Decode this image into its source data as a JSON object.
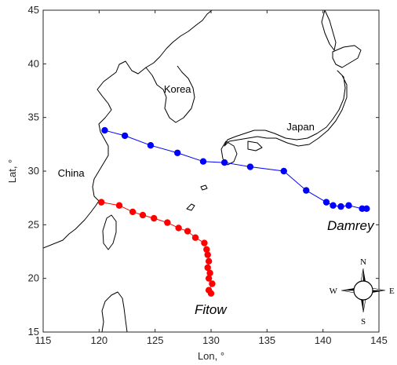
{
  "chart_data": {
    "type": "map-track",
    "xlabel": "Lon, °",
    "ylabel": "Lat, °",
    "xlim": [
      115,
      145
    ],
    "ylim": [
      15,
      45
    ],
    "xticks": [
      "115",
      "120",
      "125",
      "130",
      "135",
      "140",
      "145"
    ],
    "yticks": [
      "15",
      "20",
      "25",
      "30",
      "35",
      "40",
      "45"
    ],
    "grid": false,
    "places": [
      {
        "label": "Korea",
        "lon": 127.0,
        "lat": 37.3
      },
      {
        "label": "Japan",
        "lon": 138.0,
        "lat": 33.8
      },
      {
        "label": "China",
        "lon": 117.5,
        "lat": 29.5
      }
    ],
    "series": [
      {
        "name": "Damrey",
        "color": "#0000ff",
        "points": [
          [
            143.9,
            26.5
          ],
          [
            143.5,
            26.5
          ],
          [
            142.3,
            26.8
          ],
          [
            141.6,
            26.7
          ],
          [
            140.9,
            26.8
          ],
          [
            140.3,
            27.1
          ],
          [
            138.5,
            28.2
          ],
          [
            136.5,
            30.0
          ],
          [
            133.5,
            30.4
          ],
          [
            131.2,
            30.8
          ],
          [
            129.3,
            30.9
          ],
          [
            127.0,
            31.7
          ],
          [
            124.6,
            32.4
          ],
          [
            122.3,
            33.3
          ],
          [
            120.5,
            33.8
          ]
        ]
      },
      {
        "name": "Fitow",
        "color": "#ff0000",
        "points": [
          [
            120.2,
            27.1
          ],
          [
            121.8,
            26.8
          ],
          [
            123.0,
            26.2
          ],
          [
            123.9,
            25.9
          ],
          [
            124.9,
            25.6
          ],
          [
            126.1,
            25.2
          ],
          [
            127.1,
            24.7
          ],
          [
            127.9,
            24.4
          ],
          [
            128.6,
            23.8
          ],
          [
            129.4,
            23.3
          ],
          [
            129.6,
            22.7
          ],
          [
            129.7,
            22.2
          ],
          [
            129.8,
            21.6
          ],
          [
            129.7,
            21.0
          ],
          [
            129.9,
            20.5
          ],
          [
            129.8,
            20.0
          ],
          [
            130.1,
            19.5
          ],
          [
            129.8,
            18.9
          ],
          [
            130.0,
            18.6
          ]
        ]
      }
    ],
    "compass": {
      "n": "N",
      "s": "S",
      "e": "E",
      "w": "W"
    }
  }
}
